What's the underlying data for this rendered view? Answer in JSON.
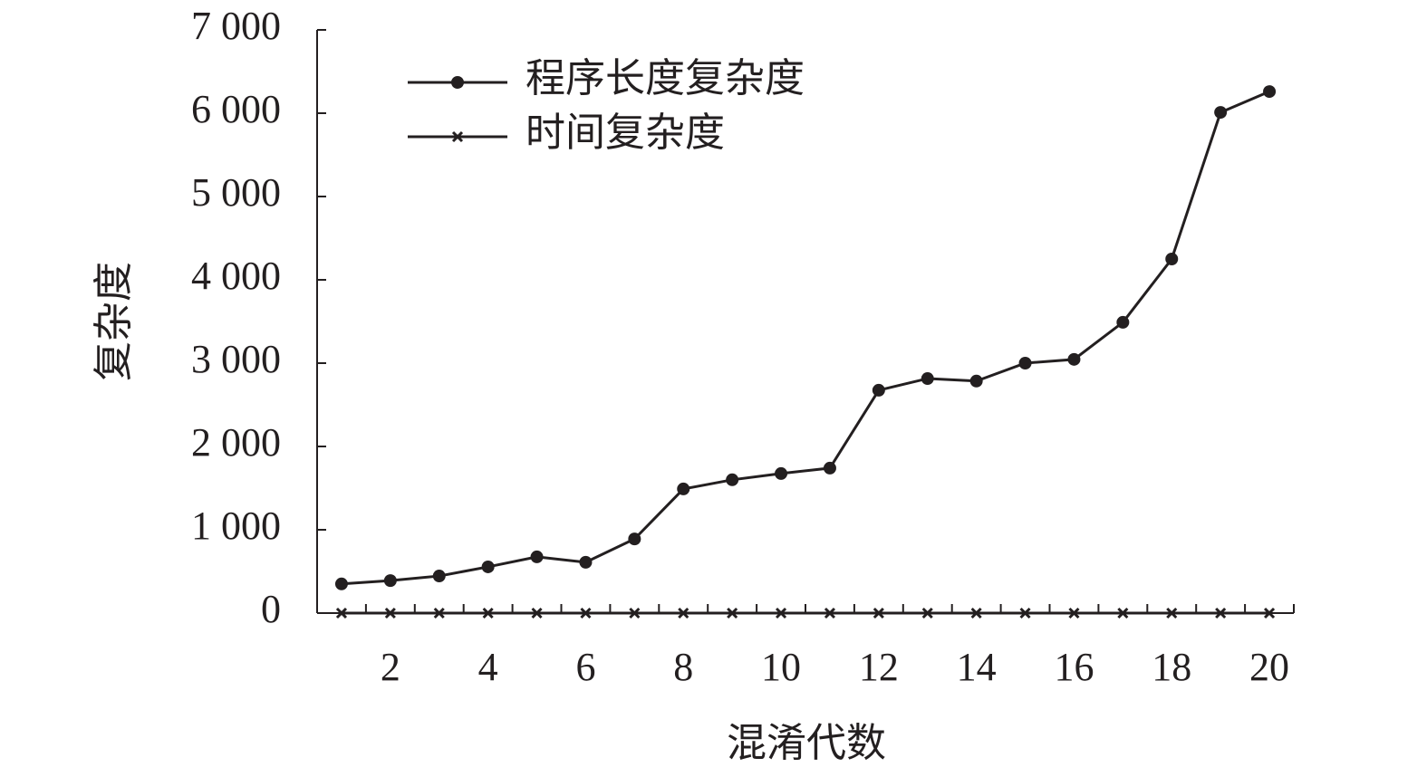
{
  "chart_data": {
    "type": "line",
    "x_label": "混淆代数",
    "y_label": "复杂度",
    "categories": [
      null,
      "2",
      null,
      "4",
      null,
      "6",
      null,
      "8",
      null,
      "10",
      null,
      "12",
      null,
      "14",
      null,
      "16",
      null,
      "18",
      null,
      "20"
    ],
    "ylim": [
      0,
      7000
    ],
    "yticks": [
      0,
      {
        "value": 1000,
        "label": "1 000"
      },
      {
        "value": 2000,
        "label": "2 000"
      },
      {
        "value": 3000,
        "label": "3 000"
      },
      {
        "value": 4000,
        "label": "4 000"
      },
      {
        "value": 5000,
        "label": "5 000"
      },
      {
        "value": 6000,
        "label": "6 000"
      },
      {
        "value": 7000,
        "label": "7 000"
      }
    ],
    "series": [
      {
        "name": "程序长度复杂度",
        "color": "#231f20",
        "marker": "circle",
        "values": [
          350,
          390,
          445,
          555,
          675,
          610,
          890,
          1490,
          1600,
          1675,
          1740,
          2675,
          2815,
          2785,
          3000,
          3045,
          3490,
          4250,
          6010,
          6260
        ]
      },
      {
        "name": "时间复杂度",
        "color": "#231f20",
        "marker": "x",
        "values": [
          0,
          0,
          0,
          0,
          0,
          0,
          0,
          0,
          0,
          0,
          0,
          0,
          0,
          0,
          0,
          0,
          0,
          0,
          0,
          0
        ]
      }
    ]
  }
}
